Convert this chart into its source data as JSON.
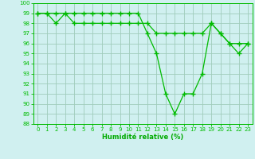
{
  "series1_x": [
    0,
    1,
    2,
    3,
    4,
    5,
    6,
    7,
    8,
    9,
    10,
    11,
    12,
    13,
    14,
    15,
    16,
    17,
    18,
    19,
    20,
    21,
    22,
    23
  ],
  "series1_y": [
    99,
    99,
    99,
    99,
    99,
    99,
    99,
    99,
    99,
    99,
    99,
    99,
    97,
    95,
    91,
    89,
    91,
    91,
    93,
    98,
    97,
    96,
    95,
    96
  ],
  "series2_x": [
    0,
    1,
    2,
    3,
    4,
    5,
    6,
    7,
    8,
    9,
    10,
    11,
    12,
    13,
    14,
    15,
    16,
    17,
    18,
    19,
    20,
    21,
    22,
    23
  ],
  "series2_y": [
    99,
    99,
    98,
    99,
    98,
    98,
    98,
    98,
    98,
    98,
    98,
    98,
    98,
    97,
    97,
    97,
    97,
    97,
    97,
    98,
    97,
    96,
    96,
    96
  ],
  "line_color": "#00bb00",
  "marker": "+",
  "markersize": 4,
  "markeredgewidth": 1.0,
  "linewidth": 0.9,
  "bg_color": "#d0f0f0",
  "grid_color": "#a0ccbb",
  "xlabel": "Humidité relative (%)",
  "xlabel_color": "#00aa00",
  "ylim": [
    88,
    100
  ],
  "xlim": [
    -0.5,
    23.5
  ],
  "yticks": [
    88,
    89,
    90,
    91,
    92,
    93,
    94,
    95,
    96,
    97,
    98,
    99,
    100
  ],
  "xticks": [
    0,
    1,
    2,
    3,
    4,
    5,
    6,
    7,
    8,
    9,
    10,
    11,
    12,
    13,
    14,
    15,
    16,
    17,
    18,
    19,
    20,
    21,
    22,
    23
  ],
  "tick_labelsize": 5.0,
  "xlabel_fontsize": 6.0
}
